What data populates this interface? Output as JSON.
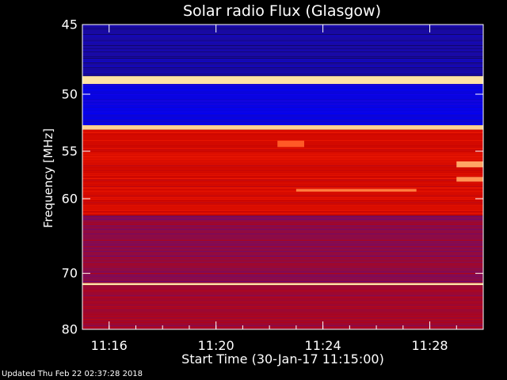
{
  "chart_data": {
    "type": "heatmap",
    "title": "Solar radio Flux (Glasgow)",
    "xlabel": "Start Time (30-Jan-17 11:15:00)",
    "ylabel": "Frequency [MHz]",
    "x_ticks": [
      "11:16",
      "11:20",
      "11:24",
      "11:28"
    ],
    "x_tick_minutes": [
      1,
      5,
      9,
      13
    ],
    "x_range_minutes": [
      0,
      15
    ],
    "y_ticks": [
      45,
      50,
      55,
      60,
      70,
      80
    ],
    "y_range": [
      45,
      80
    ],
    "y_scale": "reciprocal",
    "colormap": [
      "#000000",
      "#1a0aa0",
      "#0000ff",
      "#7a1060",
      "#c00000",
      "#ff2000",
      "#ff8040",
      "#ffffc0"
    ],
    "bands": [
      {
        "f_min": 45.0,
        "f_max": 48.6,
        "level": 0.15
      },
      {
        "f_min": 48.6,
        "f_max": 49.2,
        "level": 0.97
      },
      {
        "f_min": 49.2,
        "f_max": 52.6,
        "level": 0.25
      },
      {
        "f_min": 52.6,
        "f_max": 53.0,
        "level": 0.95
      },
      {
        "f_min": 53.0,
        "f_max": 62.0,
        "level": 0.62
      },
      {
        "f_min": 62.0,
        "f_max": 71.5,
        "level": 0.48
      },
      {
        "f_min": 71.5,
        "f_max": 71.9,
        "level": 0.97
      },
      {
        "f_min": 71.9,
        "f_max": 80.0,
        "level": 0.5
      }
    ],
    "features": [
      {
        "f_min": 58.9,
        "f_max": 59.2,
        "t_start_minutes": 8.0,
        "t_end_minutes": 12.5,
        "level": 0.85
      },
      {
        "f_min": 54.0,
        "f_max": 54.6,
        "t_start_minutes": 7.3,
        "t_end_minutes": 8.3,
        "level": 0.8
      },
      {
        "f_min": 56.0,
        "f_max": 56.6,
        "t_start_minutes": 14.0,
        "t_end_minutes": 15.0,
        "level": 0.9
      },
      {
        "f_min": 57.6,
        "f_max": 58.1,
        "t_start_minutes": 14.0,
        "t_end_minutes": 15.0,
        "level": 0.88
      }
    ]
  },
  "footer": "Updated Thu Feb 22 02:37:28 2018"
}
